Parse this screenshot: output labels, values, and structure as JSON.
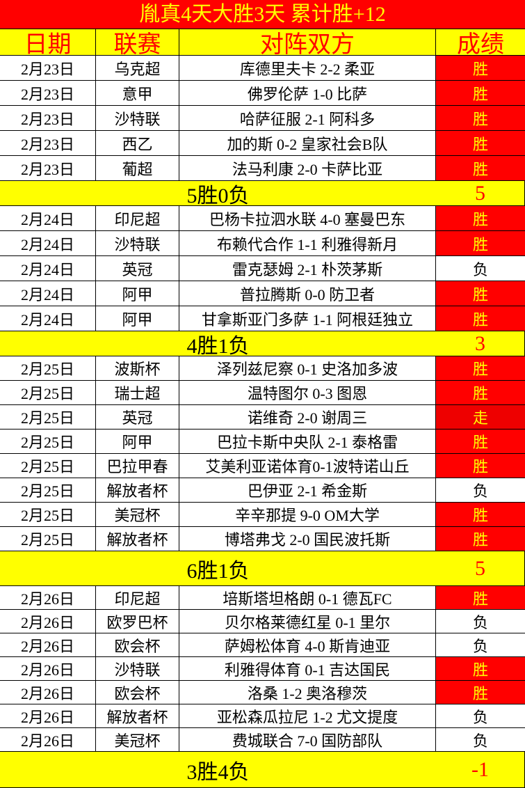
{
  "title": "胤真4天大胜3天  累计胜+12",
  "headers": [
    "日期",
    "联赛",
    "对阵双方",
    "成绩"
  ],
  "colors": {
    "win_bg": "#ff0000",
    "win_text": "#ffff00",
    "header_bg": "#ffff00",
    "header_text": "#ff0000"
  },
  "groups": [
    {
      "row_height": 36,
      "sum_height": 36,
      "rows": [
        [
          "2月23日",
          "乌克超",
          "库德里夫卡 2-2 柔亚",
          "胜"
        ],
        [
          "2月23日",
          "意甲",
          "佛罗伦萨 1-0 比萨",
          "胜"
        ],
        [
          "2月23日",
          "沙特联",
          "哈萨征服 2-1 阿科多",
          "胜"
        ],
        [
          "2月23日",
          "西乙",
          "加的斯 0-2 皇家社会B队",
          "胜"
        ],
        [
          "2月23日",
          "葡超",
          "法马利康 2-0 卡萨比亚",
          "胜"
        ]
      ],
      "summary": "5胜0负",
      "score": "5"
    },
    {
      "row_height": 36,
      "sum_height": 36,
      "rows": [
        [
          "2月24日",
          "印尼超",
          "巴杨卡拉泗水联 4-0 塞曼巴东",
          "胜"
        ],
        [
          "2月24日",
          "沙特联",
          "布赖代合作 1-1 利雅得新月",
          "胜"
        ],
        [
          "2月24日",
          "英冠",
          "雷克瑟姆 2-1 朴茨茅斯",
          "负"
        ],
        [
          "2月24日",
          "阿甲",
          "普拉腾斯 0-0 防卫者",
          "胜"
        ],
        [
          "2月24日",
          "阿甲",
          "甘拿斯亚门多萨 1-1 阿根廷独立",
          "胜"
        ]
      ],
      "summary": "4胜1负",
      "score": "3"
    },
    {
      "row_height": 35,
      "sum_height": 50,
      "rows": [
        [
          "2月25日",
          "波斯杯",
          "泽列兹尼察 0-1 史洛加多波",
          "胜"
        ],
        [
          "2月25日",
          "瑞士超",
          "温特图尔 0-3 图恩",
          "胜"
        ],
        [
          "2月25日",
          "英冠",
          "诺维奇 2-0 谢周三",
          "走"
        ],
        [
          "2月25日",
          "阿甲",
          "巴拉卡斯中央队 2-1 泰格雷",
          "胜"
        ],
        [
          "2月25日",
          "巴拉甲春",
          "艾美利亚诺体育0-1波特诺山丘",
          "胜"
        ],
        [
          "2月25日",
          "解放者杯",
          "巴伊亚 2-1 希金斯",
          "负"
        ],
        [
          "2月25日",
          "美冠杯",
          "辛辛那提 9-0 OM大学",
          "胜"
        ],
        [
          "2月25日",
          "解放者杯",
          "博塔弗戈 2-0 国民波托斯",
          "胜"
        ]
      ],
      "summary": "6胜1负",
      "score": "5"
    },
    {
      "row_height": 34,
      "sum_height": 52,
      "rows": [
        [
          "2月26日",
          "印尼超",
          "培斯塔坦格朗 0-1 德瓦FC",
          "胜"
        ],
        [
          "2月26日",
          "欧罗巴杯",
          "贝尔格莱德红星 0-1 里尔",
          "负"
        ],
        [
          "2月26日",
          "欧会杯",
          "萨姆松体育 4-0 斯肯迪亚",
          "负"
        ],
        [
          "2月26日",
          "沙特联",
          "利雅得体育 0-1 吉达国民",
          "胜"
        ],
        [
          "2月26日",
          "欧会杯",
          "洛桑 1-2 奥洛穆茨",
          "胜"
        ],
        [
          "2月26日",
          "解放者杯",
          "亚松森瓜拉尼 1-2 尤文提度",
          "负"
        ],
        [
          "2月26日",
          "美冠杯",
          "费城联合 7-0 国防部队",
          "负"
        ]
      ],
      "summary": "3胜4负",
      "score": "-1"
    }
  ]
}
